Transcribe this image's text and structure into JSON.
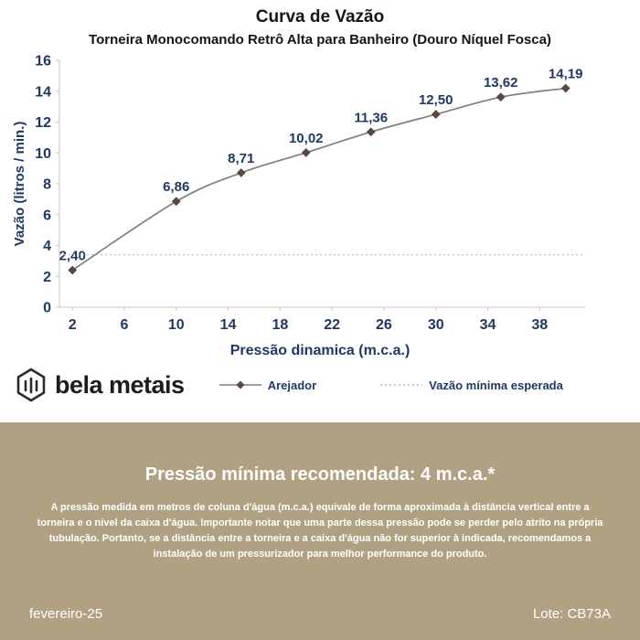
{
  "chart_data": {
    "type": "line",
    "title": "Curva de Vazão",
    "subtitle": "Torneira Monocomando Retrô Alta para Banheiro (Douro Níquel Fosca)",
    "xlabel": "Pressão dinamica (m.c.a.)",
    "ylabel": "Vazão (litros / min.)",
    "xlim": [
      1,
      41.5
    ],
    "ylim": [
      0,
      16
    ],
    "xticks": [
      2,
      6,
      10,
      14,
      18,
      22,
      26,
      30,
      34,
      38
    ],
    "yticks": [
      0,
      2,
      4,
      6,
      8,
      10,
      12,
      14,
      16
    ],
    "grid": false,
    "legend_position": "bottom",
    "series": [
      {
        "name": "Arejador",
        "type": "line",
        "color": "#7f7f7f",
        "marker": "diamond",
        "marker_color": "#5a4840",
        "x": [
          2,
          10,
          15,
          20,
          25,
          30,
          35,
          40
        ],
        "y": [
          2.4,
          6.86,
          8.71,
          10.02,
          11.36,
          12.5,
          13.62,
          14.19
        ],
        "labels": [
          "2,40",
          "6,86",
          "8,71",
          "10,02",
          "11,36",
          "12,50",
          "13,62",
          "14,19"
        ]
      },
      {
        "name": "Vazão mínima esperada",
        "type": "hline",
        "style": "dotted",
        "color": "#c0c0c0",
        "y": 3.4
      }
    ]
  },
  "logo": {
    "name": "bela metais"
  },
  "footer": {
    "heading": "Pressão mínima recomendada: 4 m.c.a.*",
    "body": "A pressão medida em metros de coluna d'água (m.c.a.) equivale de forma aproximada à distância vertical entre a torneira e o nível da caixa d'água. Importante notar que uma parte dessa pressão pode se perder pelo atrito na própria tubulação. Portanto, se a distância entre a torneira e a caixa d'água não for superior à indicada, recomendamos a instalação de um pressurizador para melhor performance do produto.",
    "date": "fevereiro-25",
    "lot": "Lote: CB73A"
  },
  "colors": {
    "text_navy": "#1f3864",
    "axis_gray": "#c6c6c6",
    "line_gray": "#7f7f7f",
    "footer_bg": "#b1a183"
  }
}
